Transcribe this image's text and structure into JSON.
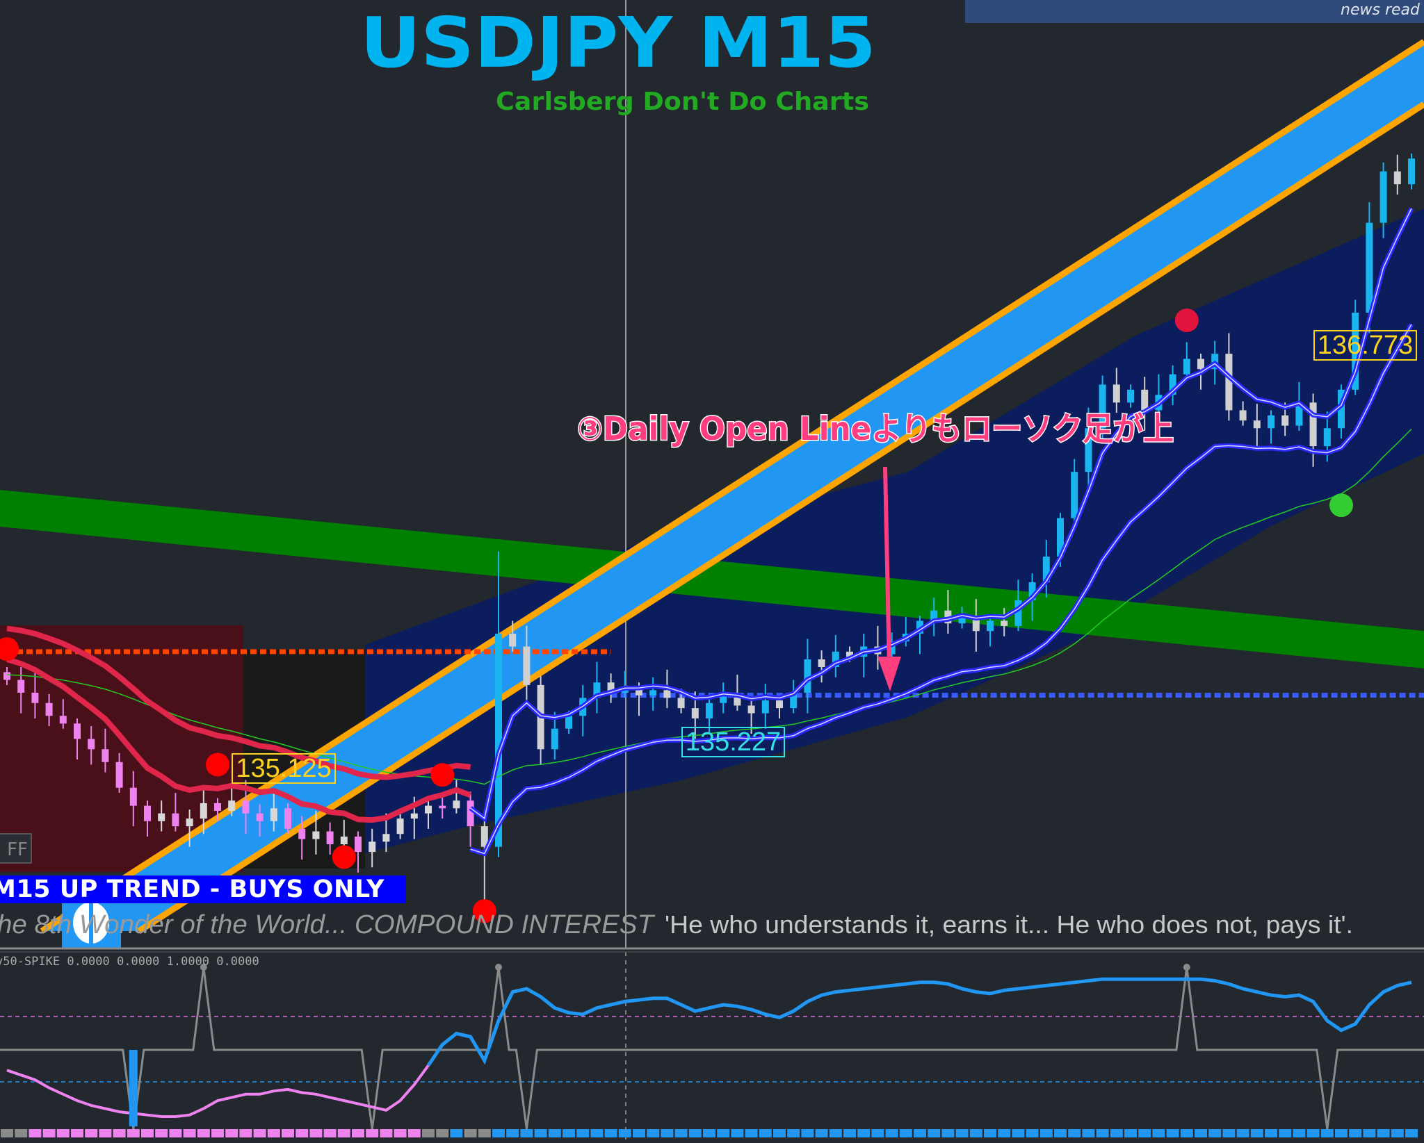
{
  "header": {
    "title": "USDJPY M15",
    "subtitle": "Carlsberg Don't Do Charts",
    "news_text": "news read"
  },
  "controls": {
    "off_button": "FF"
  },
  "banner": {
    "text": "M15 UP TREND - BUYS ONLY"
  },
  "quote": {
    "part1": "he 8th Wonder of the World...  COMPOUND INTEREST",
    "part2": "'He who understands it, earns it... He who does not, pays it'."
  },
  "annotation": {
    "text": "③Daily Open Lineよりもローソク足が上"
  },
  "indicator": {
    "label": "v50-SPIKE 0.0000 0.0000 1.0000 0.0000"
  },
  "colors": {
    "background": "#23272e",
    "bull_candle": "#19b5f0",
    "bear_candle_left": "#ee82ee",
    "neutral_candle": "#d0d0d0",
    "trend_band_orange": "#ffa500",
    "trend_band_blue": "#2196f3",
    "daily_open_green": "#008000",
    "title": "#00b4f0",
    "subtitle": "#22aa22",
    "annotation": "#ff3d7f"
  },
  "chart_data": {
    "type": "candlestick",
    "symbol": "USDJPY",
    "timeframe": "M15",
    "closes": [
      135.47,
      135.42,
      135.38,
      135.33,
      135.3,
      135.24,
      135.2,
      135.15,
      135.05,
      134.98,
      134.92,
      134.95,
      134.9,
      134.93,
      134.99,
      134.96,
      135.0,
      134.95,
      134.92,
      134.97,
      134.89,
      134.85,
      134.88,
      134.83,
      134.86,
      134.8,
      134.84,
      134.87,
      134.93,
      134.95,
      134.98,
      134.97,
      135.0,
      134.9,
      134.82,
      135.65,
      135.6,
      135.45,
      135.2,
      135.28,
      135.33,
      135.4,
      135.46,
      135.42,
      135.44,
      135.41,
      135.43,
      135.4,
      135.36,
      135.32,
      135.38,
      135.41,
      135.37,
      135.34,
      135.39,
      135.36,
      135.42,
      135.55,
      135.52,
      135.58,
      135.56,
      135.6,
      135.57,
      135.62,
      135.65,
      135.7,
      135.74,
      135.69,
      135.72,
      135.66,
      135.7,
      135.68,
      135.78,
      135.85,
      135.95,
      136.1,
      136.28,
      136.45,
      136.62,
      136.55,
      136.6,
      136.52,
      136.58,
      136.66,
      136.72,
      136.68,
      136.74,
      136.52,
      136.48,
      136.45,
      136.5,
      136.46,
      136.55,
      136.38,
      136.45,
      136.6,
      136.9,
      137.25,
      137.45,
      137.4,
      137.5
    ],
    "price_labels": [
      {
        "text": "135.125",
        "index": 17,
        "price": 135.125,
        "color": "#ffd21f"
      },
      {
        "text": "135.227",
        "index": 49,
        "price": 135.227,
        "color": "#34e0e8"
      },
      {
        "text": "136.773",
        "index": 94,
        "price": 136.773,
        "color": "#ffd21f"
      }
    ],
    "levels": [
      {
        "name": "orange-dashed-level",
        "price": 135.58,
        "from": 0,
        "to": 43,
        "color": "#ff4500"
      },
      {
        "name": "daily-open-line",
        "price": 135.41,
        "from": 43,
        "to": 101,
        "color": "#3a5cff"
      }
    ],
    "signals": [
      {
        "index": 0,
        "price": 135.59,
        "color": "#ff0000"
      },
      {
        "index": 15,
        "price": 135.14,
        "color": "#ff0000"
      },
      {
        "index": 24,
        "price": 134.78,
        "color": "#ff0000"
      },
      {
        "index": 31,
        "price": 135.1,
        "color": "#ff0000"
      },
      {
        "index": 34,
        "price": 134.57,
        "color": "#ff0000"
      },
      {
        "index": 84,
        "price": 136.87,
        "color": "#e0143c"
      },
      {
        "index": 95,
        "price": 136.15,
        "color": "#33cc33"
      }
    ],
    "oscillator": [
      39,
      36,
      33,
      28,
      24,
      20,
      17,
      15,
      13,
      12,
      11,
      10,
      10,
      11,
      15,
      20,
      22,
      24,
      24,
      26,
      27,
      25,
      24,
      22,
      20,
      18,
      16,
      14,
      20,
      30,
      42,
      55,
      62,
      60,
      45,
      70,
      88,
      90,
      85,
      78,
      75,
      74,
      78,
      80,
      82,
      83,
      84,
      84,
      80,
      76,
      78,
      80,
      79,
      77,
      74,
      72,
      76,
      82,
      86,
      88,
      89,
      90,
      91,
      92,
      93,
      94,
      94,
      93,
      90,
      88,
      87,
      89,
      90,
      91,
      92,
      93,
      94,
      95,
      96,
      96,
      96,
      96,
      96,
      96,
      96,
      96,
      95,
      93,
      90,
      88,
      86,
      85,
      86,
      82,
      70,
      64,
      68,
      80,
      88,
      92,
      94
    ],
    "spikes": [
      {
        "index": 9,
        "dir": "down"
      },
      {
        "index": 14,
        "dir": "up"
      },
      {
        "index": 26,
        "dir": "down"
      },
      {
        "index": 35,
        "dir": "up"
      },
      {
        "index": 37,
        "dir": "down"
      },
      {
        "index": 84,
        "dir": "up"
      },
      {
        "index": 94,
        "dir": "down"
      }
    ]
  }
}
